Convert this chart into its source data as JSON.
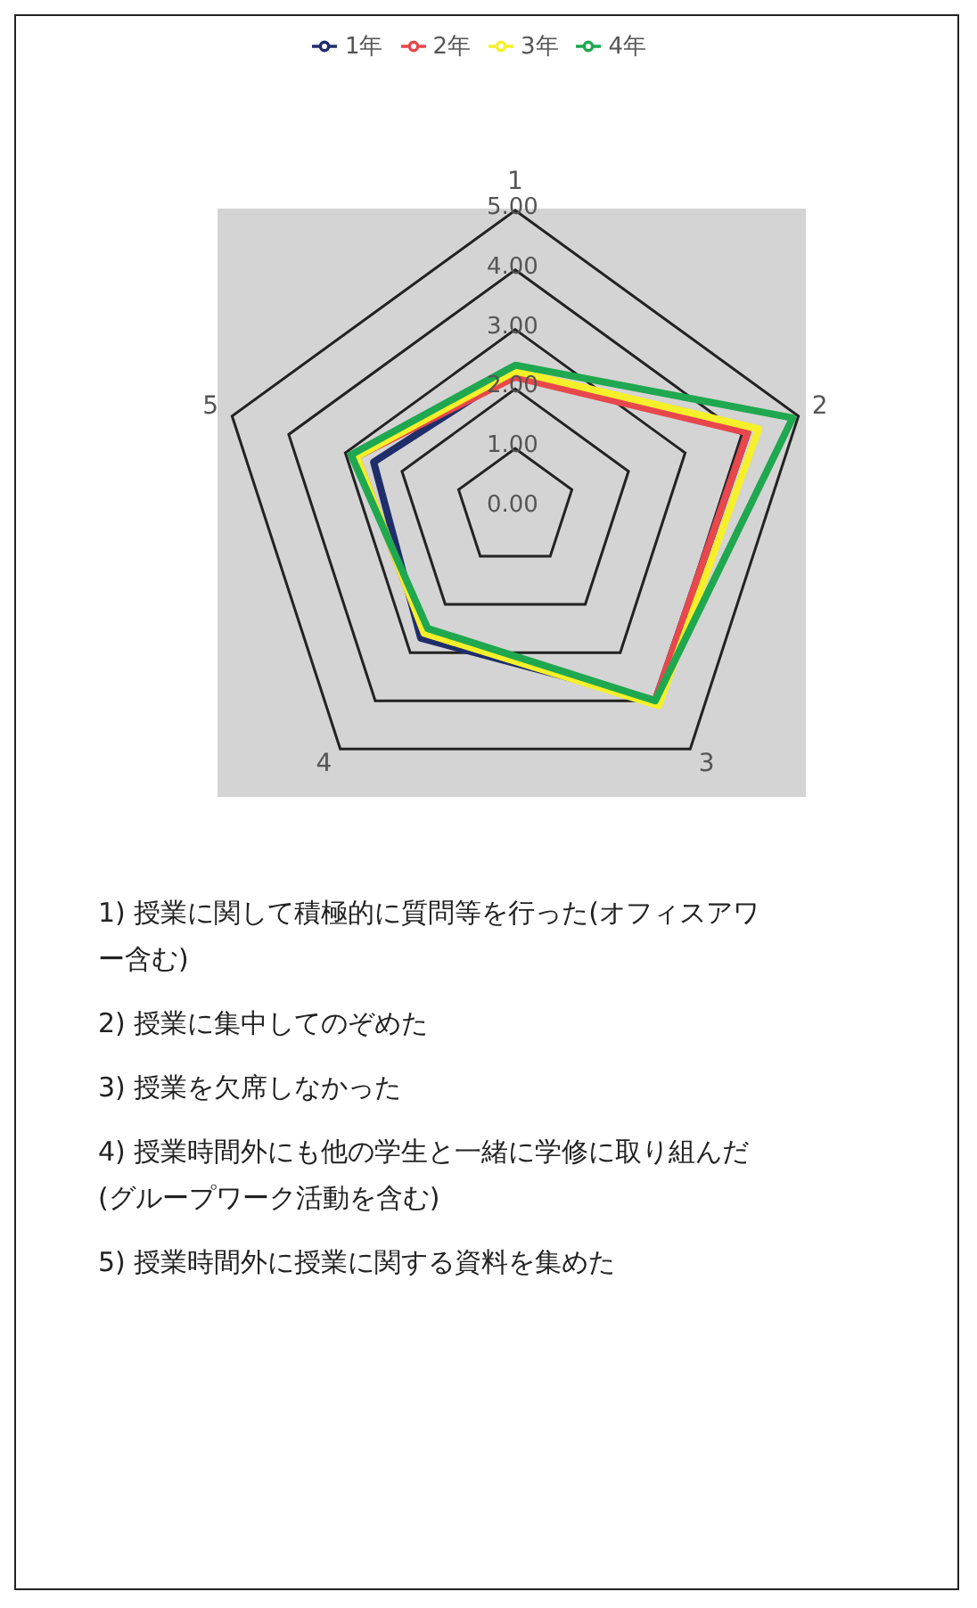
{
  "chart_data": {
    "type": "radar",
    "categories": [
      "1",
      "2",
      "3",
      "4",
      "5"
    ],
    "series": [
      {
        "name": "1年",
        "color": "#1f2d6b",
        "values": [
          2.3,
          4.1,
          4.0,
          2.7,
          2.5
        ]
      },
      {
        "name": "2年",
        "color": "#e8474c",
        "values": [
          2.2,
          4.1,
          4.0,
          2.6,
          2.8
        ]
      },
      {
        "name": "3年",
        "color": "#f5f02a",
        "values": [
          2.3,
          4.3,
          4.1,
          2.6,
          2.8
        ]
      },
      {
        "name": "4年",
        "color": "#1fa84f",
        "values": [
          2.4,
          4.9,
          4.0,
          2.5,
          2.9
        ]
      }
    ],
    "ylim": [
      0,
      5
    ],
    "yticks": [
      {
        "value": 0,
        "label": "0.00"
      },
      {
        "value": 1,
        "label": "1.00"
      },
      {
        "value": 2,
        "label": "2.00"
      },
      {
        "value": 3,
        "label": "3.00"
      },
      {
        "value": 4,
        "label": "4.00"
      },
      {
        "value": 5,
        "label": "5.00"
      }
    ],
    "legend": "top",
    "annotations": [
      "1) 授業に関して積極的に質問等を行った(オフィスアワー含む)",
      "2) 授業に集中してのぞめた",
      "3) 授業を欠席しなかった",
      "4) 授業時間外にも他の学生と一緒に学修に取り組んだ(グループワーク活動を含む)",
      "5) 授業時間外に授業に関する資料を集めた"
    ]
  }
}
